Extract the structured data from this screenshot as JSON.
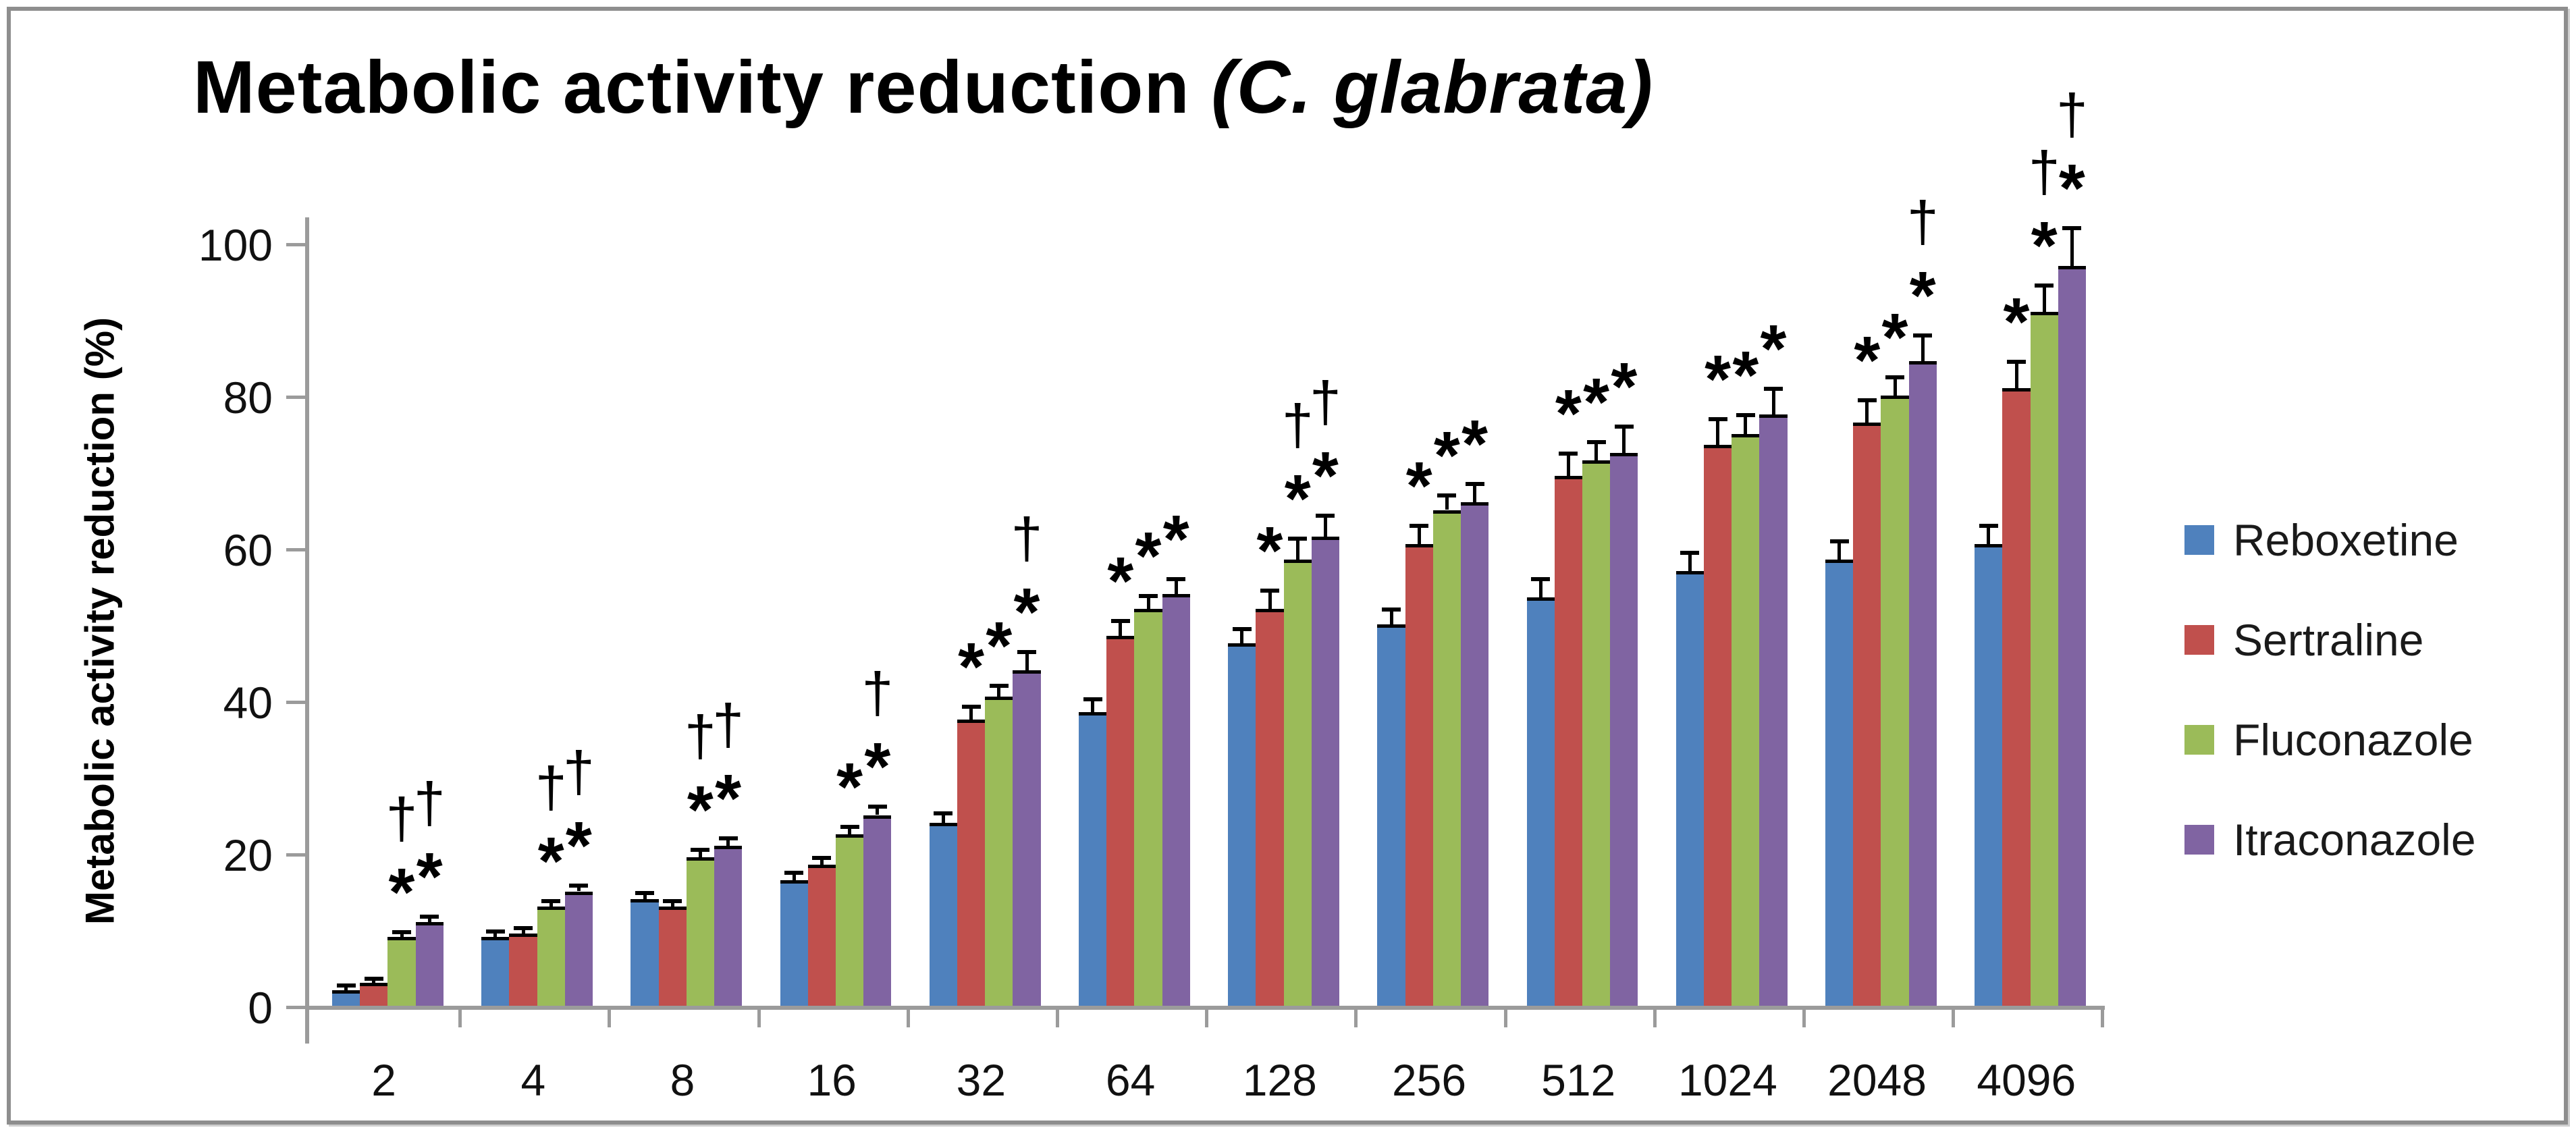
{
  "title": {
    "prefix": "Metabolic activity reduction ",
    "italic": "(C. glabrata",
    "suffix": ")"
  },
  "y_axis": {
    "title": "Metabolic activity reduction (%)",
    "tick_labels": [
      "0",
      "20",
      "40",
      "60",
      "80",
      "100"
    ],
    "min": 0,
    "max": 100
  },
  "x_axis": {
    "tick_labels": [
      "2",
      "4",
      "8",
      "16",
      "32",
      "64",
      "128",
      "256",
      "512",
      "1024",
      "2048",
      "4096"
    ]
  },
  "legend": {
    "position": "right",
    "entries": [
      {
        "label": "Reboxetine",
        "color": "#4F81BD"
      },
      {
        "label": "Sertraline",
        "color": "#C0504D"
      },
      {
        "label": "Fluconazole",
        "color": "#9BBB59"
      },
      {
        "label": "Itraconazole",
        "color": "#8064A2"
      }
    ]
  },
  "chart_data": {
    "type": "bar",
    "title": "Metabolic activity reduction (C. glabrata)",
    "xlabel": "",
    "ylabel": "Metabolic activity reduction (%)",
    "ylim": [
      0,
      100
    ],
    "grid": false,
    "legend_position": "right",
    "error_bars": "upper",
    "categories": [
      "2",
      "4",
      "8",
      "16",
      "32",
      "64",
      "128",
      "256",
      "512",
      "1024",
      "2048",
      "4096"
    ],
    "series": [
      {
        "name": "Reboxetine",
        "color": "#4F81BD",
        "values": [
          2,
          9,
          14,
          16.5,
          24,
          38.5,
          47.5,
          50,
          53.5,
          57,
          58.5,
          60.5
        ],
        "errors": [
          0.7,
          0.8,
          0.9,
          1,
          1.3,
          1.8,
          2,
          2,
          2.5,
          2.5,
          2.5,
          2.5
        ],
        "sig": [
          "",
          "",
          "",
          "",
          "",
          "",
          "",
          "",
          "",
          "",
          "",
          ""
        ]
      },
      {
        "name": "Sertraline",
        "color": "#C0504D",
        "values": [
          3,
          9.5,
          13,
          18.5,
          37.5,
          48.5,
          52,
          60.5,
          69.5,
          73.5,
          76.5,
          81
        ],
        "errors": [
          0.6,
          0.8,
          0.8,
          1,
          1.8,
          2,
          2.5,
          2.5,
          3,
          3.5,
          3,
          3.5
        ],
        "sig": [
          "",
          "",
          "",
          "",
          "*",
          "*",
          "*",
          "*",
          "*",
          "*",
          "*",
          "*"
        ]
      },
      {
        "name": "Fluconazole",
        "color": "#9BBB59",
        "values": [
          9,
          13,
          19.5,
          22.5,
          40.5,
          52,
          58.5,
          65,
          71.5,
          75,
          80,
          91
        ],
        "errors": [
          0.7,
          0.8,
          1,
          1,
          1.5,
          1.8,
          2.8,
          2,
          2.5,
          2.5,
          2.5,
          3.5
        ],
        "sig": [
          "†*",
          "†*",
          "†*",
          "*",
          "*",
          "*",
          "†*",
          "*",
          "*",
          "*",
          "*",
          "†*"
        ]
      },
      {
        "name": "Itraconazole",
        "color": "#8064A2",
        "values": [
          11,
          15,
          21,
          25,
          44,
          54,
          61.5,
          66,
          72.5,
          77.5,
          84.5,
          97
        ],
        "errors": [
          0.8,
          0.8,
          1,
          1.2,
          2.5,
          2,
          2.8,
          2.5,
          3.5,
          3.5,
          3.5,
          5
        ],
        "sig": [
          "†*",
          "†*",
          "†*",
          "†*",
          "†*",
          "*",
          "†*",
          "*",
          "*",
          "*",
          "†*",
          "†*"
        ]
      }
    ],
    "sig_symbols": {
      "asterisk": "*",
      "dagger": "†"
    }
  },
  "colors": {
    "axis": "#9B9B9B",
    "frame": "#8E8E8E",
    "error_bar": "#000000",
    "text": "#1A1A1A"
  }
}
